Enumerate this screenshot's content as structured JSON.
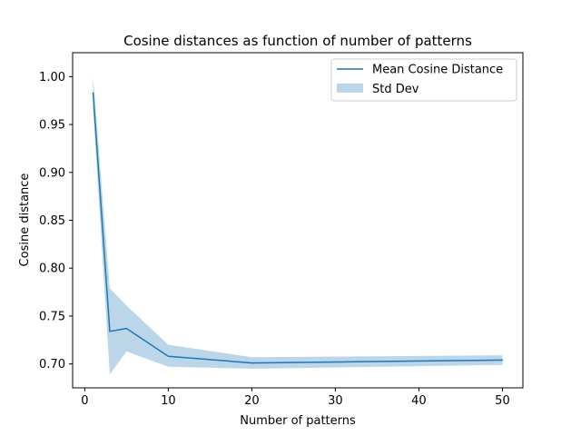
{
  "chart_data": {
    "type": "line",
    "title": "Cosine distances as function of number of patterns",
    "xlabel": "Number of patterns",
    "ylabel": "Cosine distance",
    "xlim": [
      -1.45,
      52.45
    ],
    "ylim": [
      0.675,
      1.025
    ],
    "xticks": [
      0,
      10,
      20,
      30,
      40,
      50
    ],
    "xtick_labels": [
      "0",
      "10",
      "20",
      "30",
      "40",
      "50"
    ],
    "yticks": [
      0.7,
      0.75,
      0.8,
      0.85,
      0.9,
      0.95,
      1.0
    ],
    "ytick_labels": [
      "0.70",
      "0.75",
      "0.80",
      "0.85",
      "0.90",
      "0.95",
      "1.00"
    ],
    "grid": false,
    "legend_position": "top-right",
    "series": [
      {
        "name": "Mean Cosine Distance",
        "kind": "line",
        "color": "#1f77b4",
        "x": [
          1,
          3,
          5,
          10,
          20,
          50
        ],
        "y": [
          0.983,
          0.734,
          0.737,
          0.708,
          0.701,
          0.704
        ]
      },
      {
        "name": "Std Dev",
        "kind": "band",
        "color": "#1f77b4",
        "alpha": 0.3,
        "x": [
          1,
          3,
          5,
          10,
          20,
          50
        ],
        "lower": [
          0.966,
          0.689,
          0.713,
          0.697,
          0.695,
          0.699
        ],
        "upper": [
          1.0,
          0.779,
          0.761,
          0.72,
          0.707,
          0.709
        ]
      }
    ]
  }
}
